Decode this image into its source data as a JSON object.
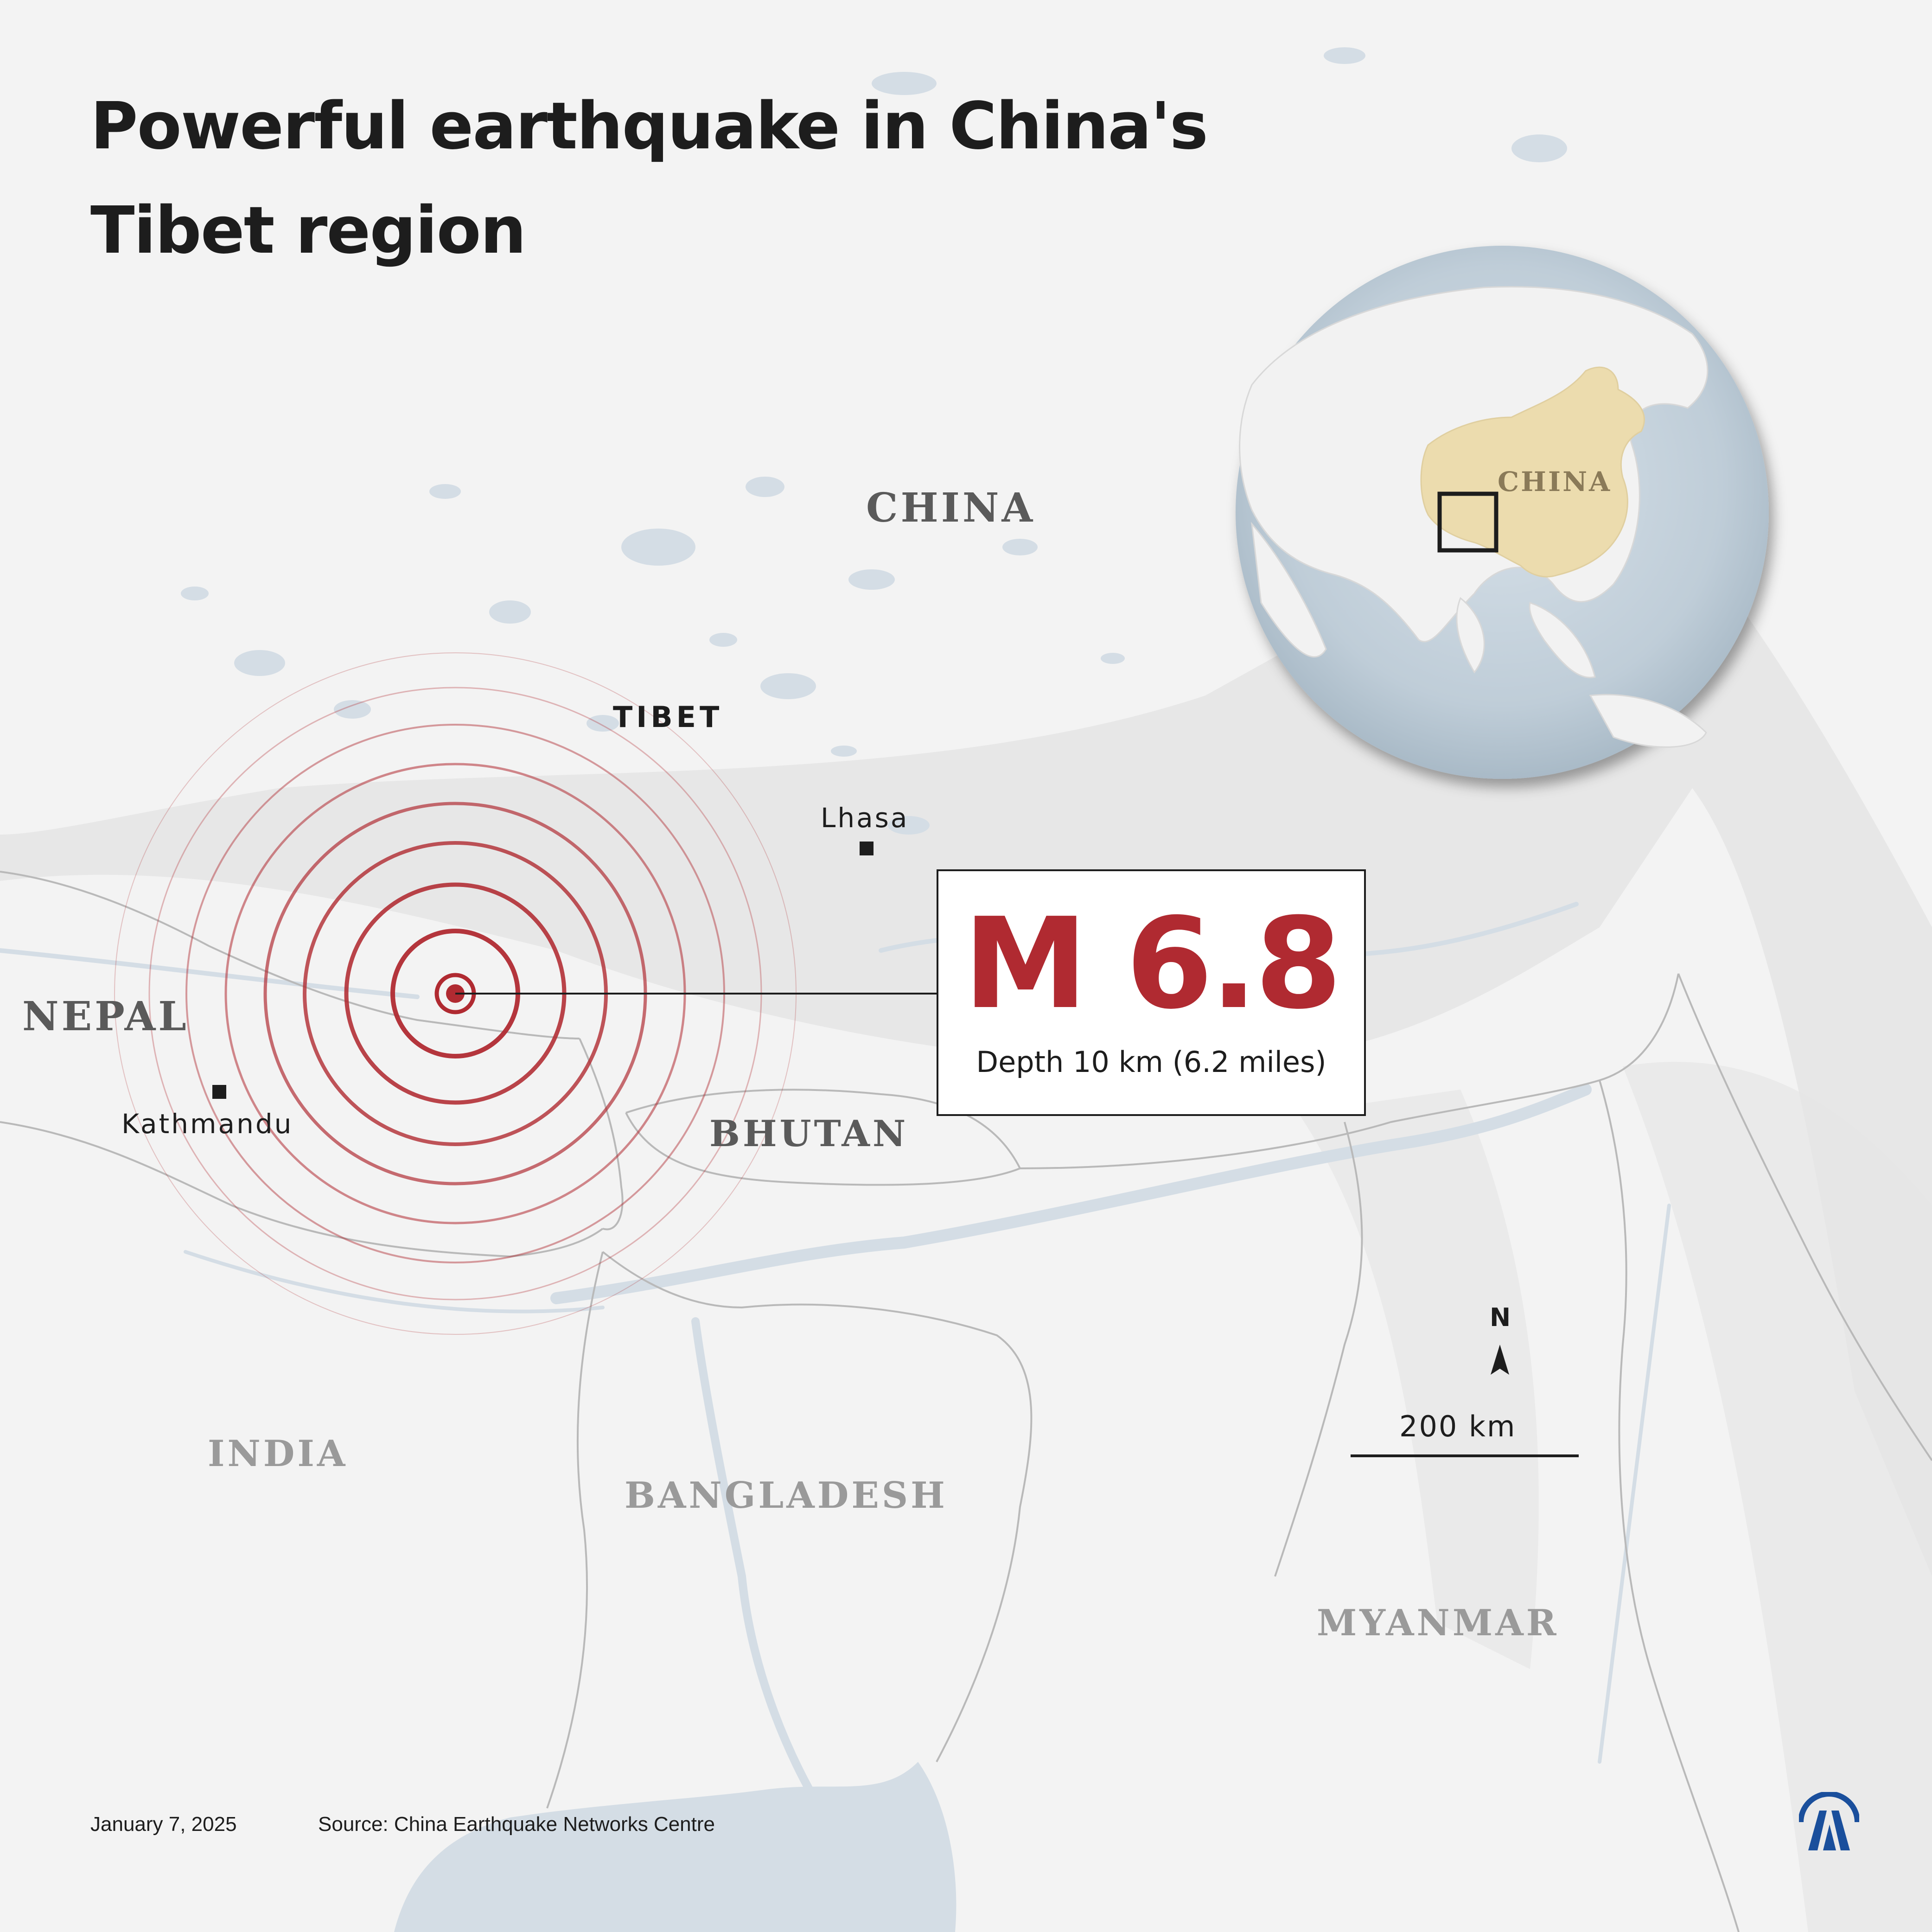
{
  "title_line1": "Powerful earthquake in China's",
  "title_line2": "Tibet region",
  "labels": {
    "china": "CHINA",
    "tibet": "TIBET",
    "nepal": "NEPAL",
    "bhutan": "BHUTAN",
    "india": "INDIA",
    "bangladesh": "BANGLADESH",
    "myanmar": "MYANMAR",
    "globe_china": "CHINA"
  },
  "cities": {
    "lhasa": "Lhasa",
    "kathmandu": "Kathmandu"
  },
  "earthquake": {
    "magnitude": "M 6.8",
    "depth_label": "Depth",
    "depth_value": "10 km (6.2 miles)"
  },
  "scale": {
    "north": "N",
    "distance": "200 km"
  },
  "footer": {
    "date": "January 7, 2025",
    "source": "Source: China Earthquake Networks Centre"
  },
  "colors": {
    "quake_red": "#b02a31",
    "water": "#d4dde5",
    "land": "#f3f3f3",
    "globe_ocean": "#c3d0da",
    "china_highlight": "#ecdcae",
    "logo_blue": "#1a4f9c"
  }
}
